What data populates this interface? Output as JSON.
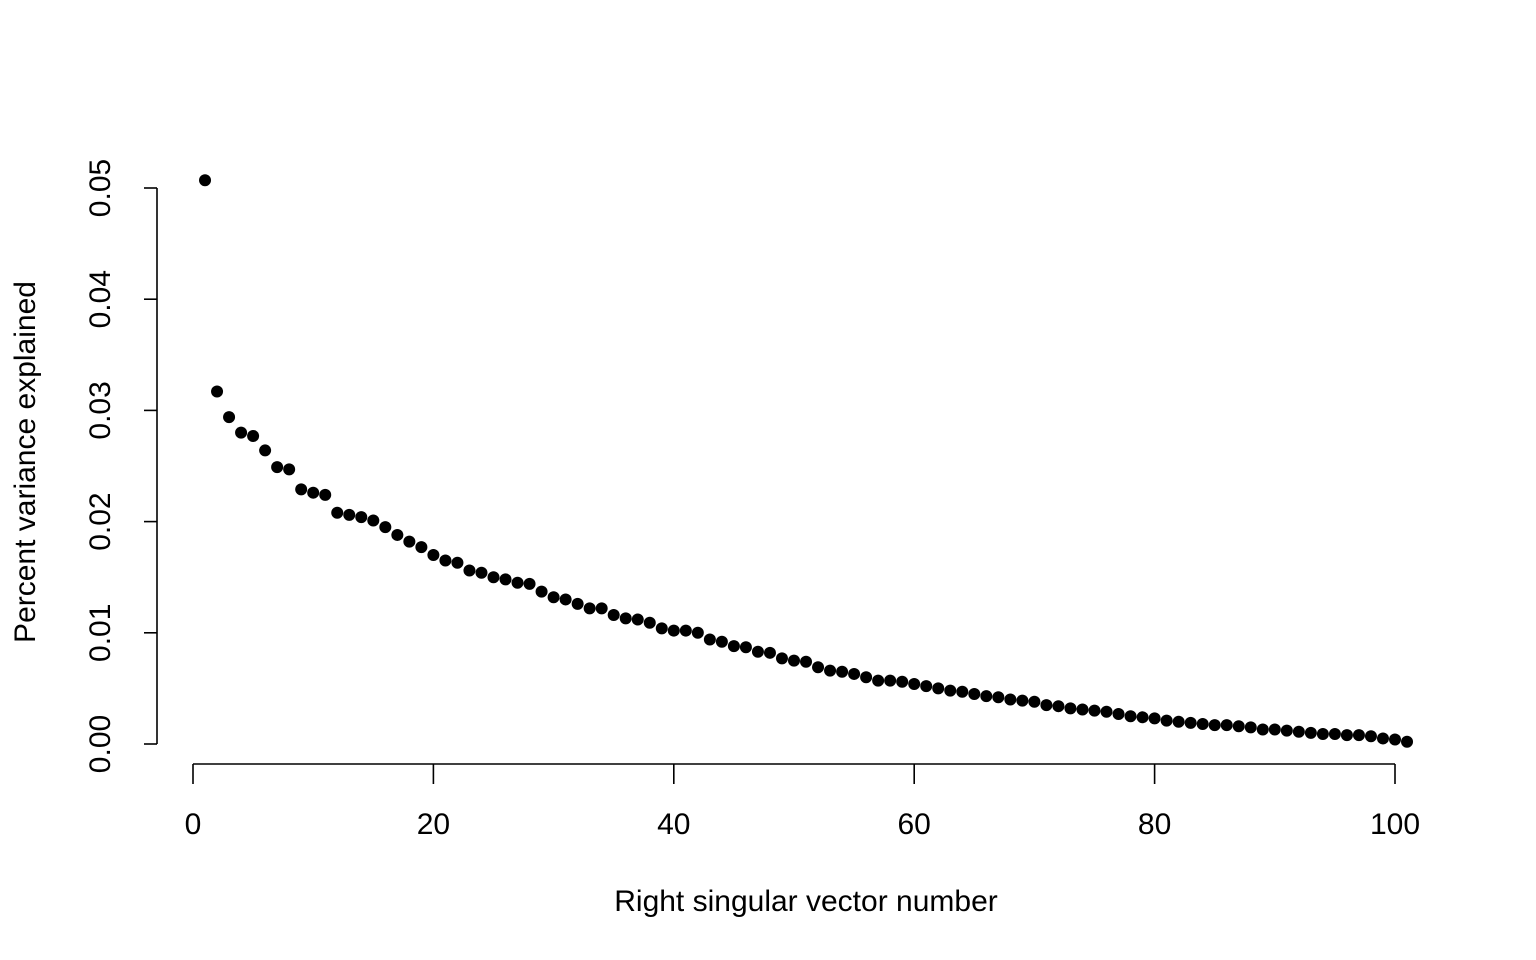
{
  "chart_data": {
    "type": "scatter",
    "title": "",
    "xlabel": "Right singular vector number",
    "ylabel": "Percent variance explained",
    "xlim": [
      0,
      101
    ],
    "ylim": [
      0,
      0.0507
    ],
    "x_ticks": [
      0,
      20,
      40,
      60,
      80,
      100
    ],
    "y_ticks": [
      0.0,
      0.01,
      0.02,
      0.03,
      0.04,
      0.05
    ],
    "x_tick_labels": [
      "0",
      "20",
      "40",
      "60",
      "80",
      "100"
    ],
    "y_tick_labels": [
      "0.00",
      "0.01",
      "0.02",
      "0.03",
      "0.04",
      "0.05"
    ],
    "grid": false,
    "point_color": "#000000",
    "series": [
      {
        "x": [
          1,
          2,
          3,
          4,
          5,
          6,
          7,
          8,
          9,
          10,
          11,
          12,
          13,
          14,
          15,
          16,
          17,
          18,
          19,
          20,
          21,
          22,
          23,
          24,
          25,
          26,
          27,
          28,
          29,
          30,
          31,
          32,
          33,
          34,
          35,
          36,
          37,
          38,
          39,
          40,
          41,
          42,
          43,
          44,
          45,
          46,
          47,
          48,
          49,
          50,
          51,
          52,
          53,
          54,
          55,
          56,
          57,
          58,
          59,
          60,
          61,
          62,
          63,
          64,
          65,
          66,
          67,
          68,
          69,
          70,
          71,
          72,
          73,
          74,
          75,
          76,
          77,
          78,
          79,
          80,
          81,
          82,
          83,
          84,
          85,
          86,
          87,
          88,
          89,
          90,
          91,
          92,
          93,
          94,
          95,
          96,
          97,
          98,
          99,
          100,
          101
        ],
        "y": [
          0.0507,
          0.0317,
          0.0294,
          0.028,
          0.0277,
          0.0264,
          0.0249,
          0.0247,
          0.0229,
          0.0226,
          0.0224,
          0.0208,
          0.0206,
          0.0204,
          0.0201,
          0.0195,
          0.0188,
          0.0182,
          0.0177,
          0.017,
          0.0165,
          0.0163,
          0.0156,
          0.0154,
          0.015,
          0.0148,
          0.0145,
          0.0144,
          0.0137,
          0.0132,
          0.013,
          0.0126,
          0.0122,
          0.0122,
          0.0116,
          0.0113,
          0.0112,
          0.0109,
          0.0104,
          0.0102,
          0.0102,
          0.01,
          0.0094,
          0.0092,
          0.0088,
          0.0087,
          0.0083,
          0.0082,
          0.0077,
          0.0075,
          0.0074,
          0.0069,
          0.0066,
          0.0065,
          0.0063,
          0.006,
          0.0057,
          0.0057,
          0.0056,
          0.0054,
          0.0052,
          0.005,
          0.0048,
          0.0047,
          0.0045,
          0.0043,
          0.0042,
          0.004,
          0.0039,
          0.0038,
          0.0035,
          0.0034,
          0.0032,
          0.0031,
          0.003,
          0.0029,
          0.0027,
          0.0025,
          0.0024,
          0.0023,
          0.0021,
          0.002,
          0.0019,
          0.0018,
          0.0017,
          0.0017,
          0.0016,
          0.0015,
          0.0013,
          0.0013,
          0.0012,
          0.0011,
          0.001,
          0.0009,
          0.0009,
          0.0008,
          0.0008,
          0.0007,
          0.0005,
          0.0004,
          0.0002
        ]
      }
    ]
  }
}
